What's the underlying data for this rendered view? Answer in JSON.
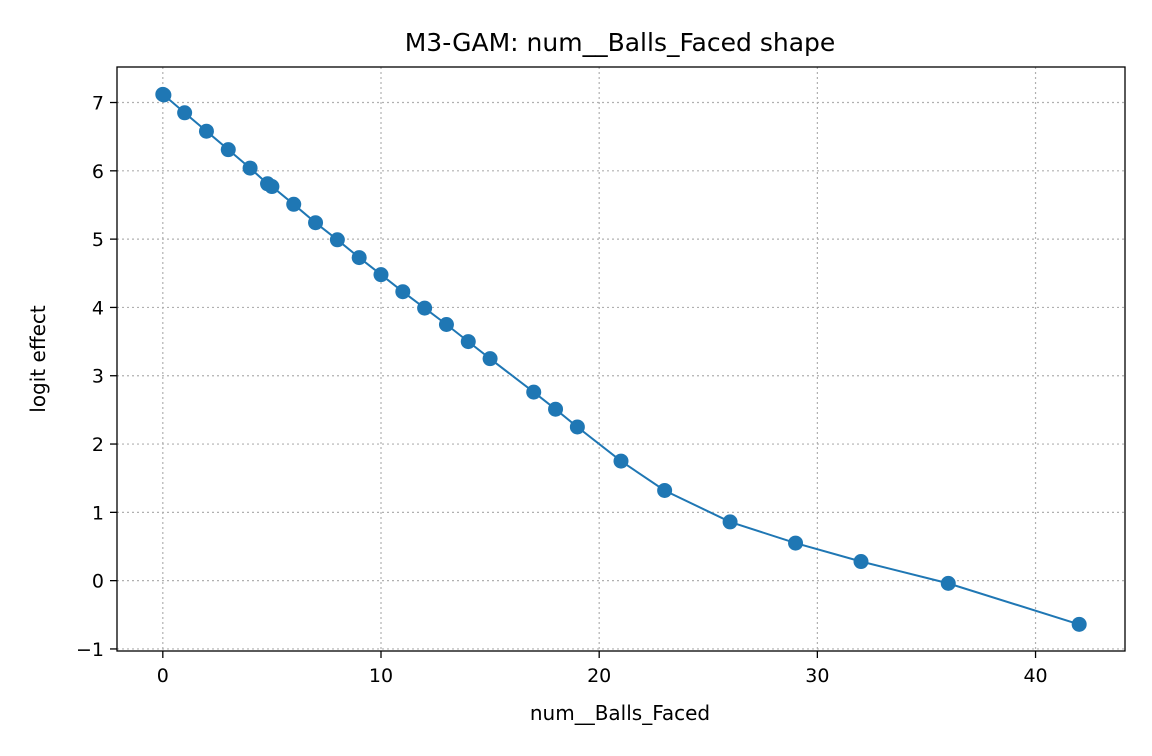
{
  "chart_data": {
    "type": "line",
    "title": "M3-GAM: num__Balls_Faced shape",
    "xlabel": "num__Balls_Faced",
    "ylabel": "logit effect",
    "xlim": [
      -2.1,
      44.1
    ],
    "ylim": [
      -1.03,
      7.52
    ],
    "x_ticks": [
      0,
      10,
      20,
      30,
      40
    ],
    "y_ticks": [
      -1,
      0,
      1,
      2,
      3,
      4,
      5,
      6,
      7
    ],
    "x_tick_labels": [
      "0",
      "10",
      "20",
      "30",
      "40"
    ],
    "y_tick_labels": [
      "−1",
      "0",
      "1",
      "2",
      "3",
      "4",
      "5",
      "6",
      "7"
    ],
    "grid": true,
    "marker": "circle",
    "color": "#1f77b4",
    "series": [
      {
        "x": [
          0,
          0.05,
          1,
          2,
          3,
          4,
          4.8,
          5,
          6,
          7,
          8,
          9,
          10,
          11,
          12,
          13,
          14,
          15,
          17,
          18,
          19,
          21,
          23,
          26,
          29,
          32,
          36,
          42
        ],
        "values": [
          7.12,
          7.11,
          6.85,
          6.58,
          6.31,
          6.04,
          5.81,
          5.77,
          5.51,
          5.24,
          4.99,
          4.73,
          4.48,
          4.23,
          3.99,
          3.75,
          3.5,
          3.25,
          2.76,
          2.51,
          2.25,
          1.75,
          1.32,
          0.86,
          0.55,
          0.28,
          -0.04,
          -0.64
        ]
      }
    ]
  }
}
